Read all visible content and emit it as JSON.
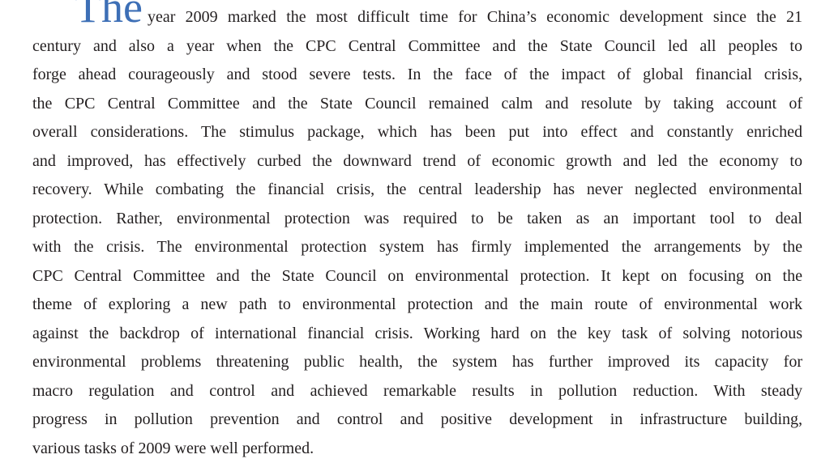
{
  "paragraph": {
    "lead": "The",
    "lines": [
      "year 2009 marked the most difficult time for China’s economic development since the 21",
      "century and also a year when the CPC Central Committee and the State Council led all peoples to",
      "forge ahead courageously and stood severe tests. In the face of the impact of global financial crisis,",
      "the CPC Central Committee and the State Council remained calm and resolute by taking account of",
      "overall considerations. The stimulus package, which has been put into effect and constantly enriched",
      "and improved, has effectively curbed the downward trend of economic growth and led the economy to",
      "recovery. While combating the financial crisis, the central leadership has never neglected environmental",
      "protection. Rather, environmental protection was required to be taken as an important tool to deal",
      "with the crisis. The environmental protection system has firmly implemented the arrangements by the",
      "CPC Central Committee and the State Council on environmental protection. It kept on focusing on the",
      "theme of exploring a new path to environmental protection and the main route of environmental work",
      "against the backdrop of international financial crisis. Working hard on the key task of solving notorious",
      "environmental problems threatening public health, the system has further improved its capacity for",
      "macro regulation and control and achieved remarkable results in pollution reduction. With steady",
      "progress in pollution prevention and control and positive development in infrastructure building,",
      "various tasks of 2009 were well performed."
    ]
  }
}
